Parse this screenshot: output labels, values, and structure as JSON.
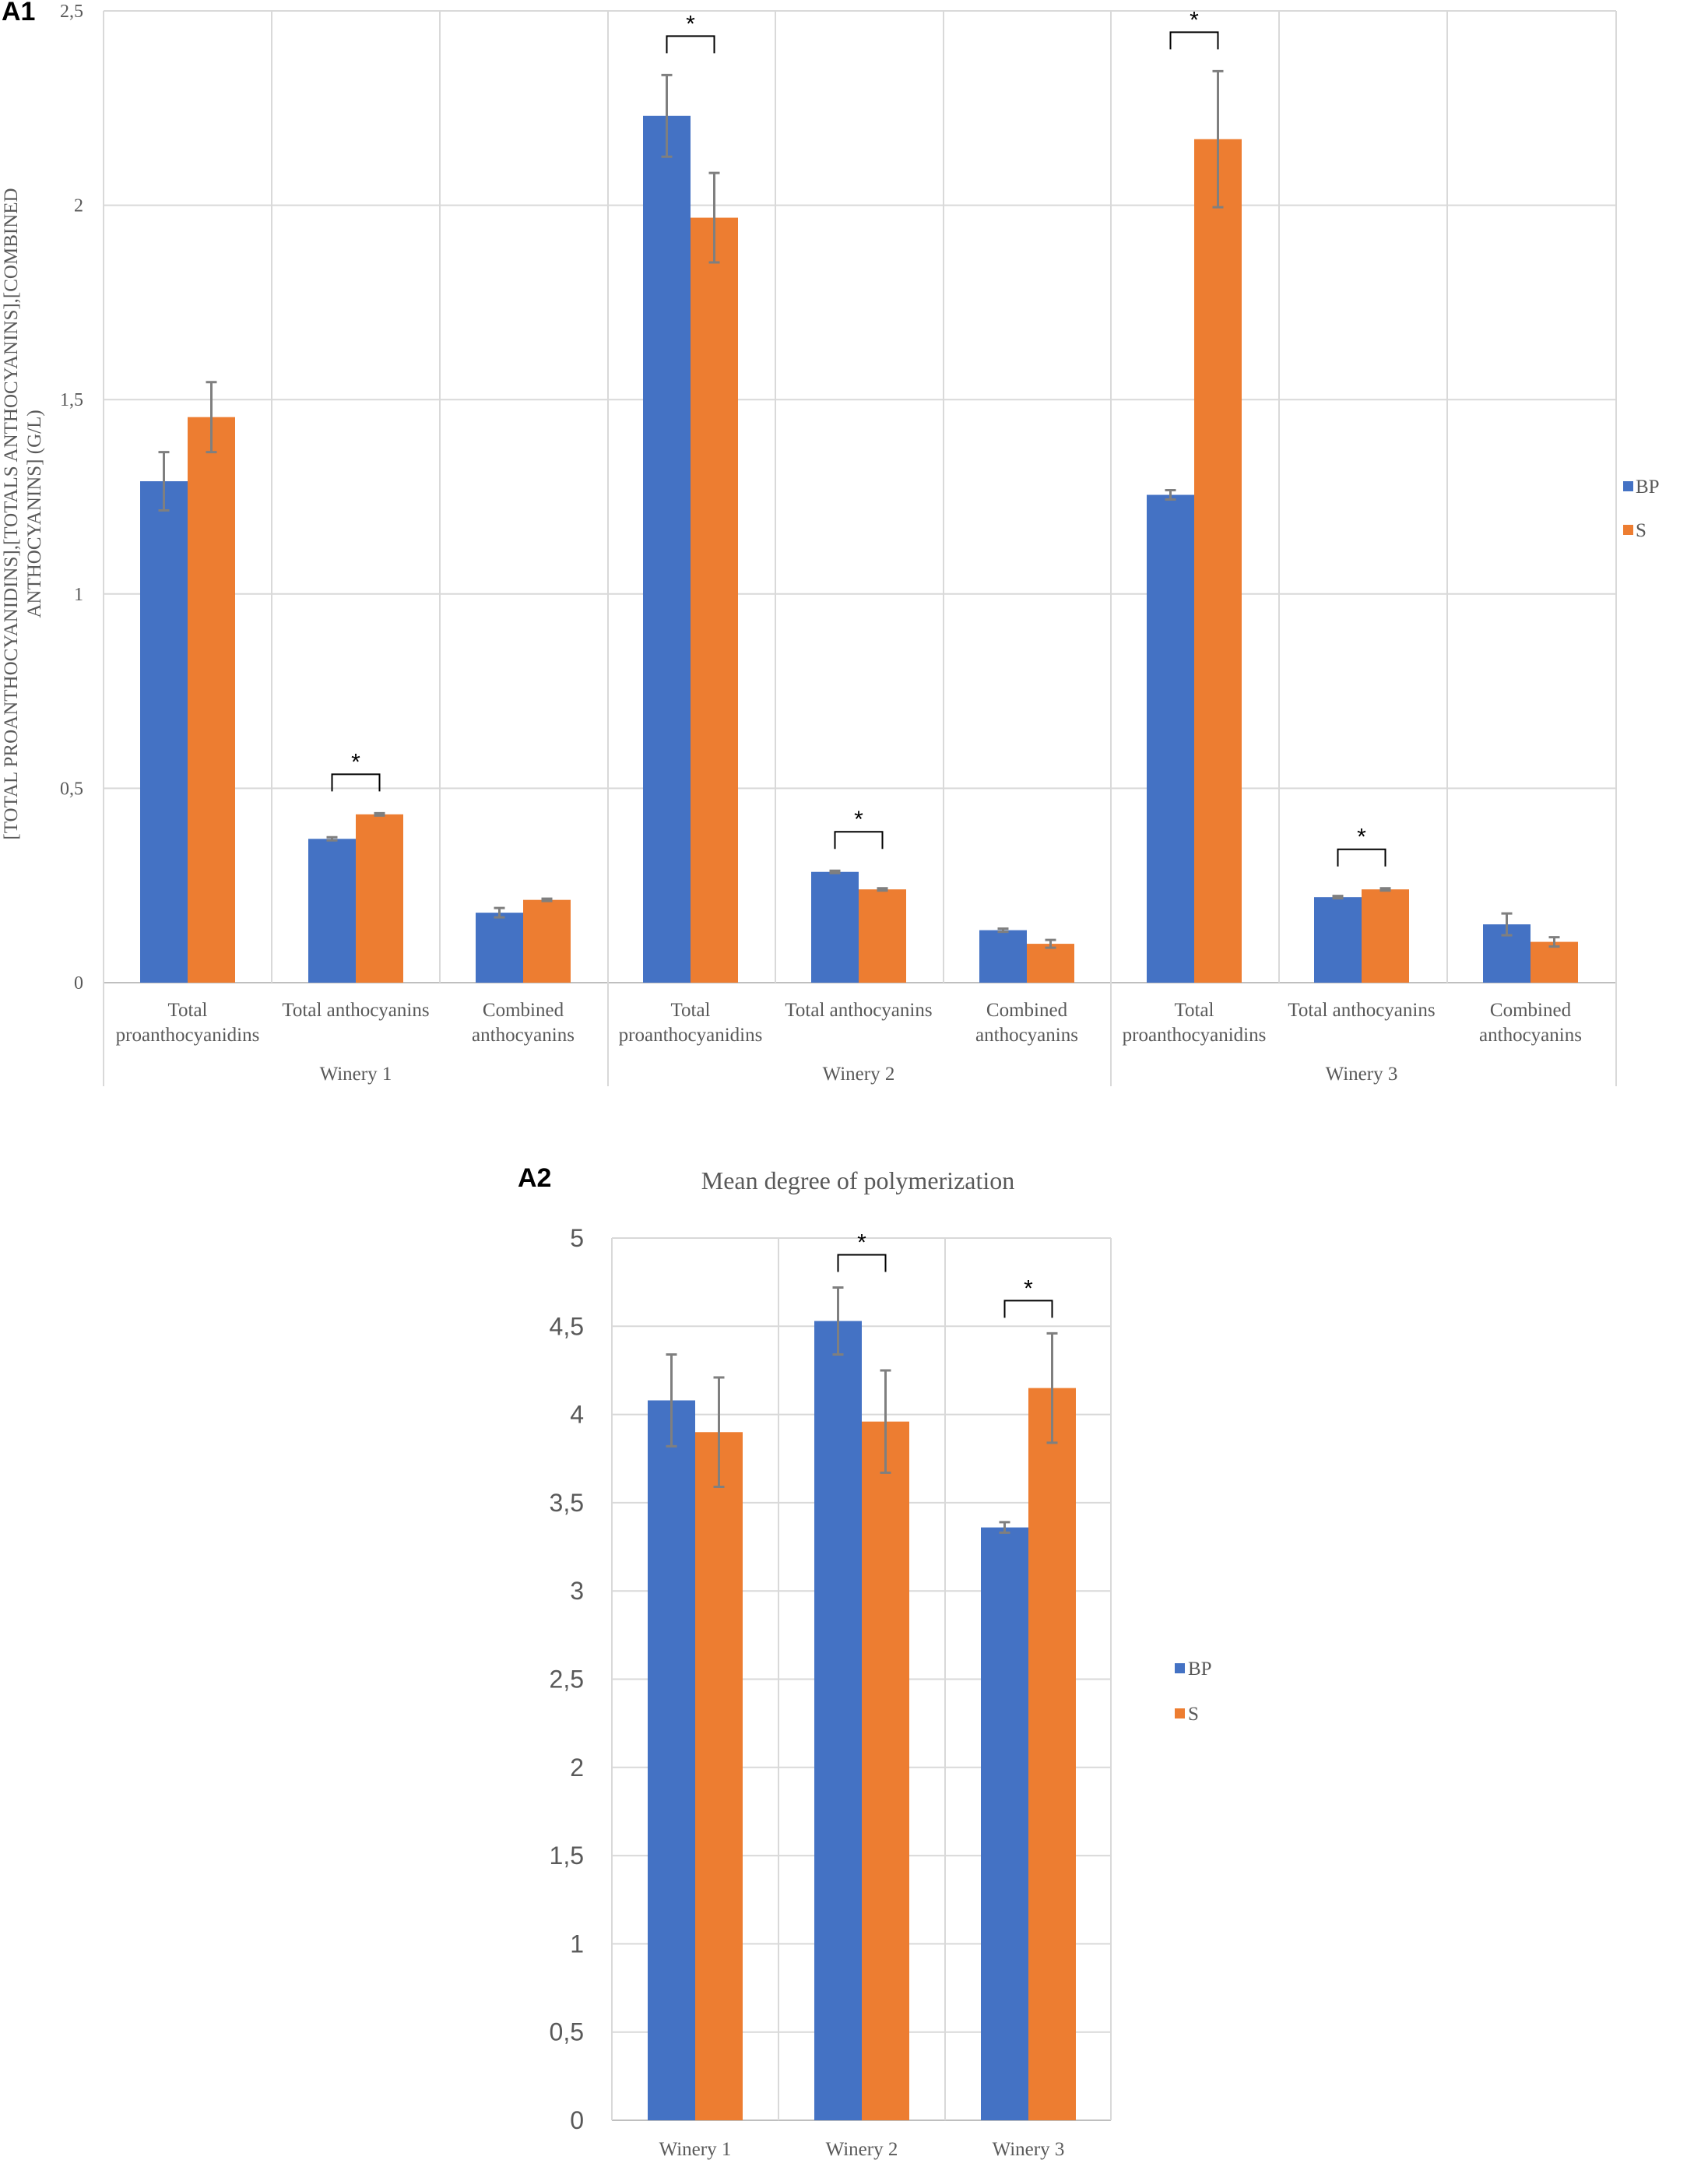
{
  "colors": {
    "BP": "#4472c4",
    "S": "#ed7d31"
  },
  "legend": [
    "BP",
    "S"
  ],
  "chart_data": [
    {
      "panel": "A1",
      "type": "bar",
      "title": "",
      "ylabel_lines": [
        "[TOTAL PROANTHOCYANIDINS],[TOTALS ANTHOCYANINS],[COMBINED",
        "ANTHOCYANINS] (G/L)"
      ],
      "ylim": [
        0,
        2.5
      ],
      "yticks": [
        "0",
        "0,5",
        "1",
        "1,5",
        "2",
        "2,5"
      ],
      "groups": [
        "Winery 1",
        "Winery 2",
        "Winery 3"
      ],
      "subcategories": [
        [
          "Total",
          "proanthocyanidins"
        ],
        [
          "Total anthocyanins"
        ],
        [
          "Combined",
          "anthocyanins"
        ]
      ],
      "series": [
        {
          "name": "BP",
          "values": [
            1.29,
            0.37,
            0.18,
            2.23,
            0.285,
            0.135,
            1.255,
            0.22,
            0.15
          ],
          "errors": [
            0.075,
            0.004,
            0.012,
            0.105,
            0.003,
            0.004,
            0.012,
            0.003,
            0.028
          ]
        },
        {
          "name": "S",
          "values": [
            1.455,
            0.433,
            0.213,
            1.968,
            0.24,
            0.1,
            2.17,
            0.24,
            0.105
          ],
          "errors": [
            0.09,
            0.003,
            0.003,
            0.115,
            0.003,
            0.01,
            0.175,
            0.003,
            0.012
          ]
        }
      ],
      "significance": [
        1,
        3,
        4,
        6,
        7
      ],
      "significance_label": "*"
    },
    {
      "panel": "A2",
      "type": "bar",
      "title": "Mean degree of polymerization",
      "ylim": [
        0,
        5
      ],
      "yticks": [
        "0",
        "0,5",
        "1",
        "1,5",
        "2",
        "2,5",
        "3",
        "3,5",
        "4",
        "4,5",
        "5"
      ],
      "categories": [
        "Winery 1",
        "Winery 2",
        "Winery 3"
      ],
      "series": [
        {
          "name": "BP",
          "values": [
            4.08,
            4.53,
            3.36
          ],
          "errors": [
            0.26,
            0.19,
            0.03
          ]
        },
        {
          "name": "S",
          "values": [
            3.9,
            3.96,
            4.15
          ],
          "errors": [
            0.31,
            0.29,
            0.31
          ]
        }
      ],
      "significance": [
        1,
        2
      ],
      "significance_label": "*"
    }
  ]
}
